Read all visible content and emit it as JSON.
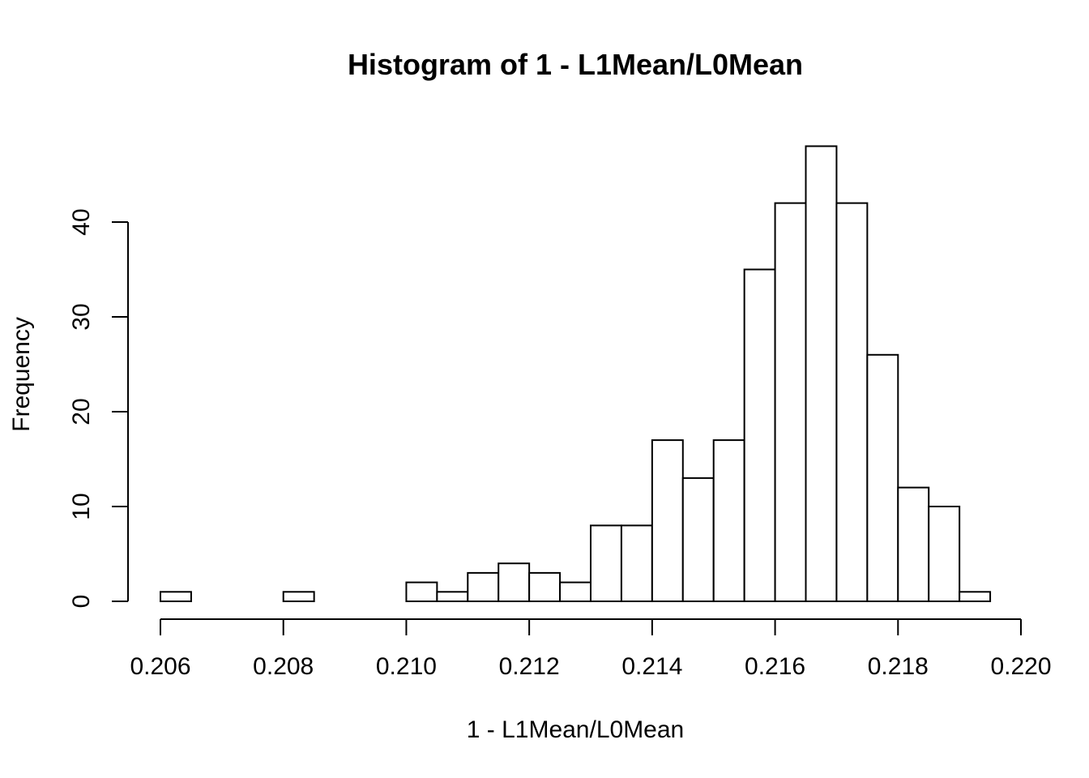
{
  "chart_data": {
    "type": "bar",
    "title": "Histogram of 1 - L1Mean/L0Mean",
    "xlabel": "1 - L1Mean/L0Mean",
    "ylabel": "Frequency",
    "bin_width": 0.0005,
    "bins_start": [
      0.206,
      0.2065,
      0.207,
      0.2075,
      0.208,
      0.2085,
      0.209,
      0.2095,
      0.21,
      0.2105,
      0.211,
      0.2115,
      0.212,
      0.2125,
      0.213,
      0.2135,
      0.214,
      0.2145,
      0.215,
      0.2155,
      0.216,
      0.2165,
      0.217,
      0.2175,
      0.218,
      0.2185,
      0.219
    ],
    "values": [
      1,
      0,
      0,
      0,
      1,
      0,
      0,
      0,
      2,
      1,
      3,
      4,
      3,
      2,
      8,
      8,
      17,
      13,
      17,
      35,
      42,
      48,
      42,
      26,
      12,
      10,
      1
    ],
    "xlim": [
      0.206,
      0.22
    ],
    "ylim": [
      0,
      48
    ],
    "x_ticks": [
      "0.206",
      "0.208",
      "0.210",
      "0.212",
      "0.214",
      "0.216",
      "0.218",
      "0.220"
    ],
    "y_ticks": [
      "0",
      "10",
      "20",
      "30",
      "40"
    ],
    "grid": false
  }
}
